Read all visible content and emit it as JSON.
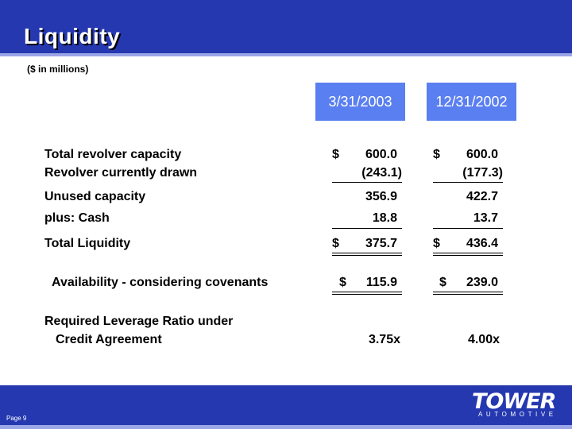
{
  "header": {
    "title": "Liquidity"
  },
  "subtitle": "($ in millions)",
  "columns": [
    "3/31/2003",
    "12/31/2002"
  ],
  "rows": {
    "revolver_capacity": {
      "label": "Total revolver capacity",
      "v1": "600.0",
      "v2": "600.0"
    },
    "revolver_drawn": {
      "label": "Revolver currently drawn",
      "v1": "(243.1)",
      "v2": "(177.3)"
    },
    "unused": {
      "label": "Unused capacity",
      "v1": "356.9",
      "v2": "422.7"
    },
    "cash": {
      "label": "plus:  Cash",
      "v1": "18.8",
      "v2": "13.7"
    },
    "total_liquidity": {
      "label": "Total Liquidity",
      "v1": "375.7",
      "v2": "436.4"
    },
    "availability": {
      "label": "Availability - considering covenants",
      "v1": "115.9",
      "v2": "239.0"
    },
    "leverage": {
      "label_line1": "Required Leverage Ratio under",
      "label_line2": "Credit Agreement",
      "v1": "3.75x",
      "v2": "4.00x"
    }
  },
  "currency_symbol": "$",
  "footer": {
    "page": "Page 9",
    "logo_word": "TOWER",
    "logo_sub": "AUTOMOTIVE"
  },
  "colors": {
    "header": "#2538b0",
    "column_header": "#5a7ff0",
    "accent_rule": "#9aa6e6"
  }
}
